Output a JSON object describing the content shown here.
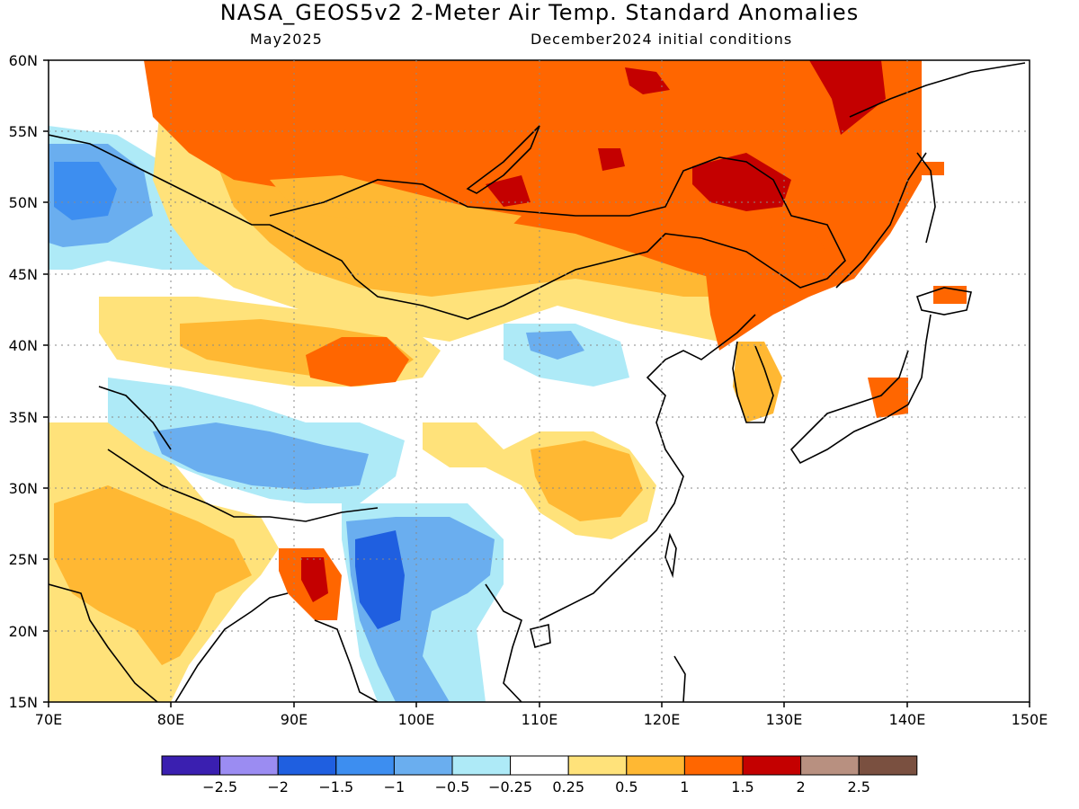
{
  "header": {
    "title": "NASA_GEOS5v2 2-Meter Air Temp. Standard Anomalies",
    "subtitle_left": "May2025",
    "subtitle_right": "December2024 initial conditions"
  },
  "map": {
    "region": "East / South Asia",
    "lon_range": [
      70,
      150
    ],
    "lat_range": [
      15,
      60
    ],
    "lon_ticks": [
      "70E",
      "80E",
      "90E",
      "100E",
      "110E",
      "120E",
      "130E",
      "140E",
      "150E"
    ],
    "lat_ticks": [
      "15N",
      "20N",
      "25N",
      "30N",
      "35N",
      "40N",
      "45N",
      "50N",
      "55N",
      "60N"
    ],
    "grid_lines": "dotted",
    "anomaly_regions": [
      {
        "name": "Siberia / Mongolia north",
        "anomaly_level": "1 to 1.5",
        "color": "#ff6600"
      },
      {
        "name": "Northeast China / Amur",
        "anomaly_level": "1.5 to 2",
        "color": "#c00000"
      },
      {
        "name": "Mongolia / north China",
        "anomaly_level": "0.5 to 1",
        "color": "#ffbb33"
      },
      {
        "name": "Kazakhstan",
        "anomaly_level": "-1.5 to -0.5",
        "color": "#3388ee"
      },
      {
        "name": "Tibet plateau",
        "anomaly_level": "-1 to -0.5",
        "color": "#66aaee"
      },
      {
        "name": "Myanmar / Indochina",
        "anomaly_level": "-1.5 to -1",
        "color": "#2266dd"
      },
      {
        "name": "India",
        "anomaly_level": "0.25 to 1",
        "color": "#ffe27a"
      },
      {
        "name": "Central China",
        "anomaly_level": "0.5 to 1",
        "color": "#ffbb33"
      },
      {
        "name": "Bangladesh",
        "anomaly_level": "1.5 to 2.5",
        "color": "#c00000"
      }
    ]
  },
  "colorbar": {
    "labels": [
      "-2.5",
      "-2",
      "-1.5",
      "-1",
      "-0.5",
      "-0.25",
      "0.25",
      "0.5",
      "1",
      "1.5",
      "2",
      "2.5"
    ],
    "colors": [
      "#3a1fb0",
      "#9b8cf2",
      "#1f5fe0",
      "#3d8ef0",
      "#6aaeef",
      "#aeeaf7",
      "#ffffff",
      "#ffe27a",
      "#ffb833",
      "#ff6600",
      "#c40000",
      "#b89080",
      "#7a5040"
    ]
  }
}
